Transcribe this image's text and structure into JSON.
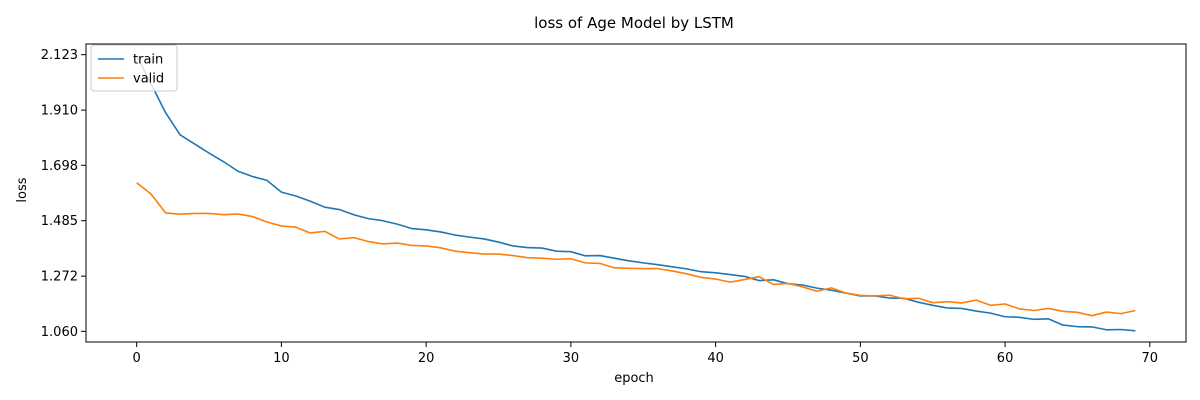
{
  "chart_data": {
    "type": "line",
    "title": "loss of Age Model by LSTM",
    "xlabel": "epoch",
    "ylabel": "loss",
    "xlim": [
      -3.5,
      72.5
    ],
    "ylim": [
      1.019,
      2.164
    ],
    "xticks": [
      0,
      10,
      20,
      30,
      40,
      50,
      60,
      70
    ],
    "yticks": [
      1.06,
      1.272,
      1.485,
      1.698,
      1.91,
      2.123
    ],
    "ytick_labels": [
      "1.060",
      "1.272",
      "1.485",
      "1.698",
      "1.910",
      "2.123"
    ],
    "legend_position": "top-left",
    "x": [
      0,
      1,
      2,
      3,
      4,
      5,
      6,
      7,
      8,
      9,
      10,
      11,
      12,
      13,
      14,
      15,
      16,
      17,
      18,
      19,
      20,
      21,
      22,
      23,
      24,
      25,
      26,
      27,
      28,
      29,
      30,
      31,
      32,
      33,
      34,
      35,
      36,
      37,
      38,
      39,
      40,
      41,
      42,
      43,
      44,
      45,
      46,
      47,
      48,
      49,
      50,
      51,
      52,
      53,
      54,
      55,
      56,
      57,
      58,
      59,
      60,
      61,
      62,
      63,
      64,
      65,
      66,
      67,
      68,
      69
    ],
    "series": [
      {
        "name": "train",
        "color": "#1f77b4",
        "values": [
          2.12,
          2.01,
          1.9,
          1.815,
          1.78,
          1.745,
          1.712,
          1.675,
          1.655,
          1.64,
          1.595,
          1.58,
          1.56,
          1.537,
          1.528,
          1.508,
          1.493,
          1.485,
          1.472,
          1.455,
          1.45,
          1.442,
          1.43,
          1.422,
          1.415,
          1.403,
          1.388,
          1.382,
          1.38,
          1.368,
          1.366,
          1.35,
          1.351,
          1.341,
          1.331,
          1.323,
          1.316,
          1.308,
          1.3,
          1.289,
          1.285,
          1.278,
          1.271,
          1.255,
          1.258,
          1.243,
          1.238,
          1.226,
          1.218,
          1.207,
          1.196,
          1.196,
          1.188,
          1.187,
          1.172,
          1.16,
          1.15,
          1.148,
          1.138,
          1.13,
          1.116,
          1.114,
          1.106,
          1.108,
          1.084,
          1.078,
          1.077,
          1.066,
          1.067,
          1.062
        ]
      },
      {
        "name": "valid",
        "color": "#ff7f0e",
        "values": [
          1.631,
          1.587,
          1.515,
          1.51,
          1.513,
          1.513,
          1.508,
          1.511,
          1.501,
          1.48,
          1.465,
          1.46,
          1.438,
          1.444,
          1.415,
          1.42,
          1.405,
          1.396,
          1.399,
          1.39,
          1.388,
          1.381,
          1.368,
          1.362,
          1.357,
          1.357,
          1.351,
          1.343,
          1.341,
          1.337,
          1.339,
          1.323,
          1.321,
          1.304,
          1.302,
          1.301,
          1.301,
          1.292,
          1.281,
          1.267,
          1.261,
          1.249,
          1.259,
          1.27,
          1.24,
          1.244,
          1.231,
          1.214,
          1.227,
          1.207,
          1.198,
          1.196,
          1.199,
          1.185,
          1.187,
          1.17,
          1.174,
          1.169,
          1.18,
          1.16,
          1.165,
          1.146,
          1.14,
          1.148,
          1.137,
          1.133,
          1.12,
          1.134,
          1.128,
          1.14
        ]
      }
    ]
  }
}
